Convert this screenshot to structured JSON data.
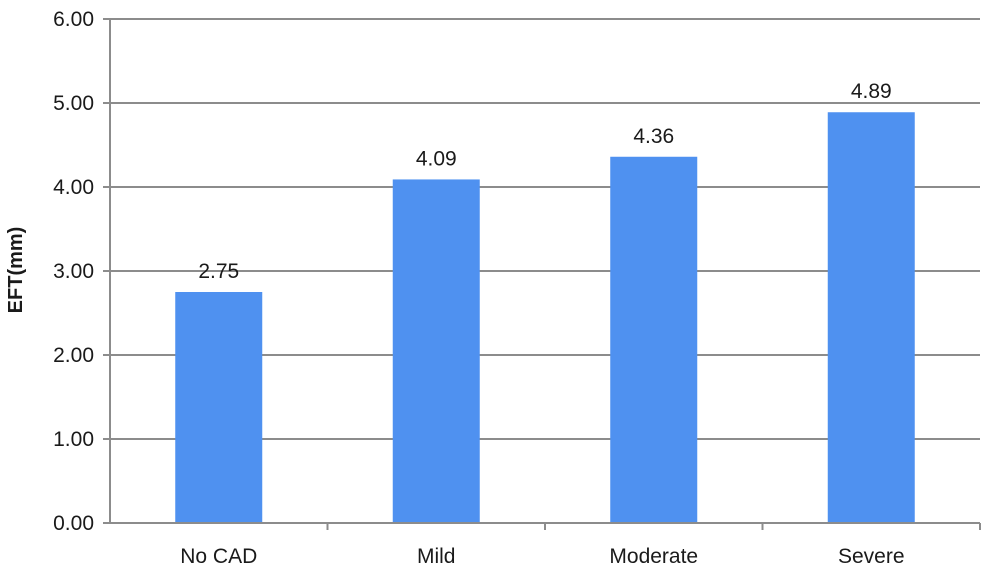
{
  "chart_data": {
    "type": "bar",
    "categories": [
      "No CAD",
      "Mild",
      "Moderate",
      "Severe"
    ],
    "values": [
      2.75,
      4.09,
      4.36,
      4.89
    ],
    "data_labels": [
      "2.75",
      "4.09",
      "4.36",
      "4.89"
    ],
    "title": "",
    "xlabel": "",
    "ylabel": "EFT(mm)",
    "ylim": [
      0,
      6
    ],
    "yticks": [
      "0.00",
      "1.00",
      "2.00",
      "3.00",
      "4.00",
      "5.00",
      "6.00"
    ],
    "grid": true,
    "legend": "none",
    "bar_color": "#4f91f0",
    "grid_color": "#8c8c8c"
  }
}
